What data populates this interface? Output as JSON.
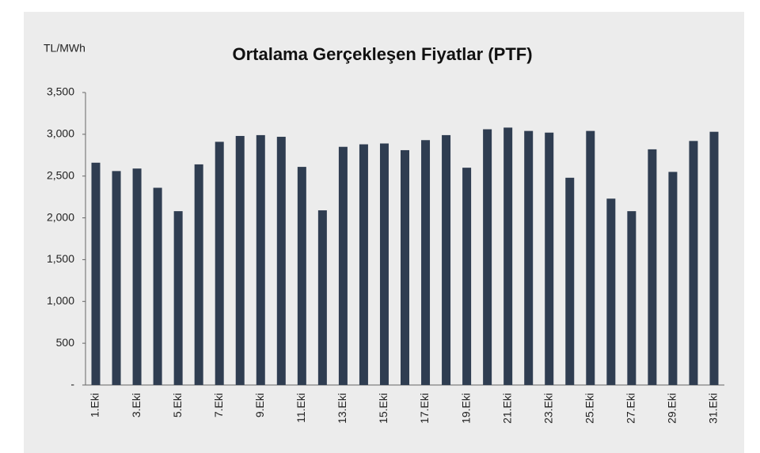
{
  "chart_data": {
    "type": "bar",
    "title": "Ortalama Gerçekleşen Fiyatlar (PTF)",
    "y_axis_label": "TL/MWh",
    "categories": [
      "1.Eki",
      null,
      "3.Eki",
      null,
      "5.Eki",
      null,
      "7.Eki",
      null,
      "9.Eki",
      null,
      "11.Eki",
      null,
      "13.Eki",
      null,
      "15.Eki",
      null,
      "17.Eki",
      null,
      "19.Eki",
      null,
      "21.Eki",
      null,
      "23.Eki",
      null,
      "25.Eki",
      null,
      "27.Eki",
      null,
      "29.Eki",
      null,
      "31.Eki"
    ],
    "values": [
      2660,
      2560,
      2590,
      2360,
      2080,
      2640,
      2910,
      2980,
      2990,
      2970,
      2610,
      2090,
      2850,
      2880,
      2890,
      2810,
      2930,
      2990,
      2600,
      3060,
      3080,
      3040,
      3020,
      2480,
      3040,
      2230,
      2080,
      2820,
      2550,
      2920,
      3030
    ],
    "color": "#2f3d51",
    "ylim": [
      0,
      3500
    ],
    "yticks": [
      {
        "value": 0,
        "label": "-"
      },
      500,
      {
        "value": 1000,
        "label": "1,000"
      },
      {
        "value": 1500,
        "label": "1,500"
      },
      {
        "value": 2000,
        "label": "2,000"
      },
      {
        "value": 2500,
        "label": "2,500"
      },
      {
        "value": 3000,
        "label": "3,000"
      },
      {
        "value": 3500,
        "label": "3,500"
      }
    ],
    "grid": false
  }
}
